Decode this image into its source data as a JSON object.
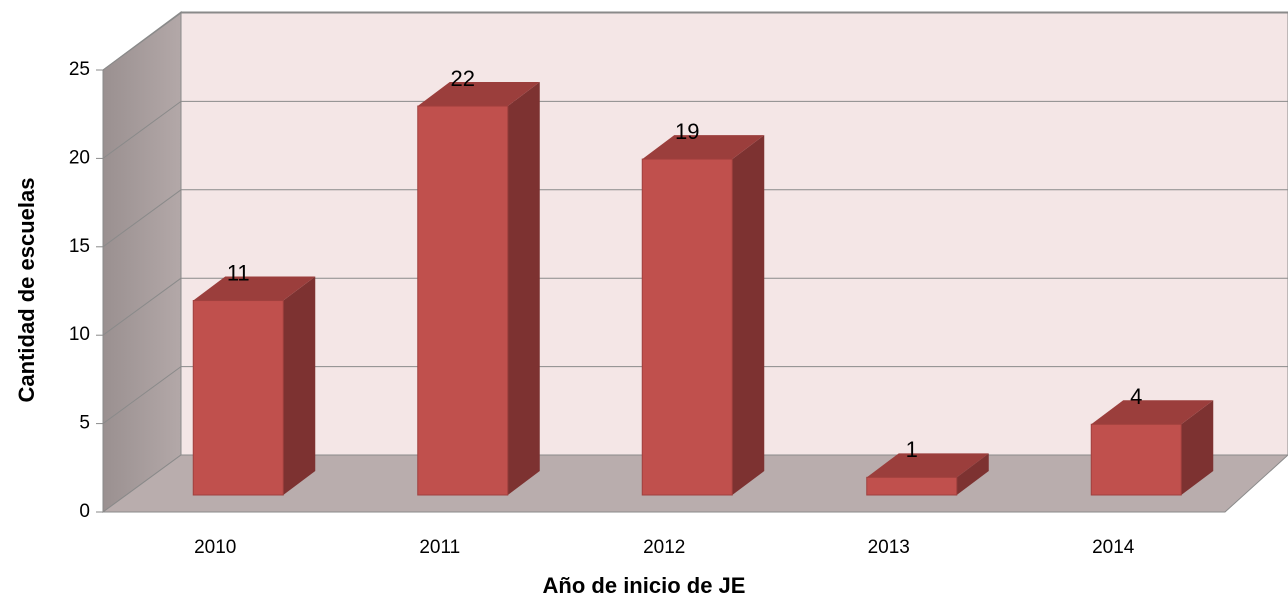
{
  "chart_data": {
    "type": "bar3d",
    "categories": [
      "2010",
      "2011",
      "2012",
      "2013",
      "2014"
    ],
    "values": [
      11,
      22,
      19,
      1,
      4
    ],
    "color": "#c0504d",
    "xlabel": "Año de inicio de JE",
    "ylabel": "Cantidad de escuelas",
    "ylim": [
      0,
      25
    ],
    "yticks": [
      0,
      5,
      10,
      15,
      20,
      25
    ],
    "grid": true
  }
}
